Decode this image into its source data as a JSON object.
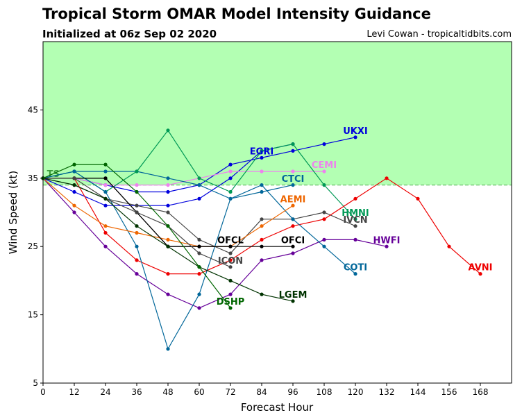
{
  "title": "Tropical Storm OMAR Model Intensity Guidance",
  "subtitle": "Initialized at 06z Sep 02 2020",
  "credit": "Levi Cowan - tropicaltidbits.com",
  "chart_data": {
    "type": "line",
    "xlabel": "Forecast Hour",
    "ylabel": "Wind Speed (kt)",
    "xlim": [
      0,
      180
    ],
    "ylim": [
      5,
      55
    ],
    "xticks": [
      0,
      12,
      24,
      36,
      48,
      60,
      72,
      84,
      96,
      108,
      120,
      132,
      144,
      156,
      168
    ],
    "yticks": [
      5,
      15,
      25,
      35,
      45
    ],
    "ts_threshold": 34,
    "ts_label": "TS",
    "shading": {
      "color": "#b3ffb3",
      "from": 34,
      "to": 55
    },
    "threshold_color": "#6abf6a",
    "series": [
      {
        "name": "UKXI",
        "color": "#0000dd",
        "x": [
          0,
          12,
          24,
          36,
          48,
          60,
          72,
          84,
          96,
          108,
          120
        ],
        "y": [
          35,
          35,
          34,
          33,
          33,
          34,
          37,
          38,
          39,
          40,
          41
        ],
        "label_at": [
          120,
          42
        ]
      },
      {
        "name": "EGRI",
        "color": "#0000dd",
        "x": [
          0,
          12,
          24,
          36,
          48,
          60,
          72,
          84,
          96
        ],
        "y": [
          35,
          33,
          31,
          31,
          31,
          32,
          35,
          39,
          40
        ],
        "label_at": [
          84,
          39
        ]
      },
      {
        "name": "CEMI",
        "color": "#ee82ee",
        "x": [
          0,
          12,
          24,
          36,
          48,
          60,
          72,
          84,
          96,
          108
        ],
        "y": [
          35,
          35,
          34,
          34,
          34,
          35,
          36,
          36,
          36,
          36
        ],
        "label_at": [
          108,
          37
        ]
      },
      {
        "name": "CTCI",
        "color": "#006699",
        "x": [
          0,
          12,
          24,
          36,
          48,
          60,
          72,
          84,
          96
        ],
        "y": [
          35,
          36,
          36,
          36,
          35,
          34,
          32,
          33,
          34
        ],
        "label_at": [
          96,
          35
        ]
      },
      {
        "name": "HMNI",
        "color": "#009955",
        "x": [
          0,
          12,
          24,
          36,
          48,
          60,
          72,
          84,
          96,
          108,
          120
        ],
        "y": [
          35,
          36,
          33,
          36,
          42,
          35,
          33,
          39,
          40,
          34,
          29
        ],
        "label_at": [
          120,
          30
        ]
      },
      {
        "name": "IVCN",
        "color": "#444444",
        "x": [
          0,
          12,
          24,
          36,
          48,
          60,
          72,
          84,
          96,
          108,
          120
        ],
        "y": [
          35,
          34,
          32,
          31,
          30,
          26,
          24,
          29,
          29,
          30,
          28
        ],
        "label_at": [
          120,
          29
        ]
      },
      {
        "name": "HWFI",
        "color": "#660099",
        "x": [
          0,
          12,
          24,
          36,
          48,
          60,
          72,
          84,
          96,
          108,
          120,
          132
        ],
        "y": [
          35,
          30,
          25,
          21,
          18,
          16,
          18,
          23,
          24,
          26,
          26,
          25
        ],
        "label_at": [
          132,
          26
        ]
      },
      {
        "name": "AVNI",
        "color": "#ee0000",
        "x": [
          0,
          12,
          24,
          36,
          48,
          60,
          72,
          84,
          96,
          108,
          120,
          132,
          144,
          156,
          168
        ],
        "y": [
          35,
          35,
          27,
          23,
          21,
          21,
          23,
          26,
          28,
          29,
          32,
          35,
          32,
          25,
          21
        ],
        "label_at": [
          168,
          22
        ]
      },
      {
        "name": "COTI",
        "color": "#006699",
        "x": [
          0,
          12,
          24,
          36,
          48,
          60,
          72,
          84,
          96,
          108,
          120
        ],
        "y": [
          35,
          36,
          33,
          25,
          10,
          18,
          32,
          34,
          29,
          25,
          21
        ],
        "label_at": [
          120,
          22
        ]
      },
      {
        "name": "AEMI",
        "color": "#ee6600",
        "x": [
          0,
          12,
          24,
          36,
          48,
          60,
          72,
          84,
          96
        ],
        "y": [
          35,
          31,
          28,
          27,
          26,
          25,
          25,
          28,
          31
        ],
        "label_at": [
          96,
          32
        ]
      },
      {
        "name": "OFCI",
        "color": "#000000",
        "x": [
          0,
          12,
          24,
          36,
          48,
          60,
          72,
          84,
          96
        ],
        "y": [
          35,
          35,
          35,
          30,
          25,
          25,
          25,
          25,
          25
        ],
        "label_at": [
          96,
          26
        ]
      },
      {
        "name": "OFCL",
        "color": "#000000",
        "x": [
          0,
          12,
          24,
          36,
          48,
          60,
          72
        ],
        "y": [
          35,
          35,
          35,
          30,
          25,
          25,
          25
        ],
        "label_at": [
          72,
          26
        ]
      },
      {
        "name": "ICON",
        "color": "#444444",
        "x": [
          0,
          12,
          24,
          36,
          48,
          60,
          72
        ],
        "y": [
          35,
          35,
          32,
          30,
          28,
          24,
          22
        ],
        "label_at": [
          72,
          23
        ]
      },
      {
        "name": "LGEM",
        "color": "#003300",
        "x": [
          0,
          12,
          24,
          36,
          48,
          60,
          72,
          84,
          96
        ],
        "y": [
          35,
          34,
          32,
          28,
          25,
          22,
          20,
          18,
          17
        ],
        "label_at": [
          96,
          18
        ]
      },
      {
        "name": "DSHP",
        "color": "#006600",
        "x": [
          0,
          12,
          24,
          36,
          48,
          60,
          72
        ],
        "y": [
          35,
          37,
          37,
          33,
          28,
          22,
          16
        ],
        "label_at": [
          72,
          17
        ]
      }
    ]
  }
}
